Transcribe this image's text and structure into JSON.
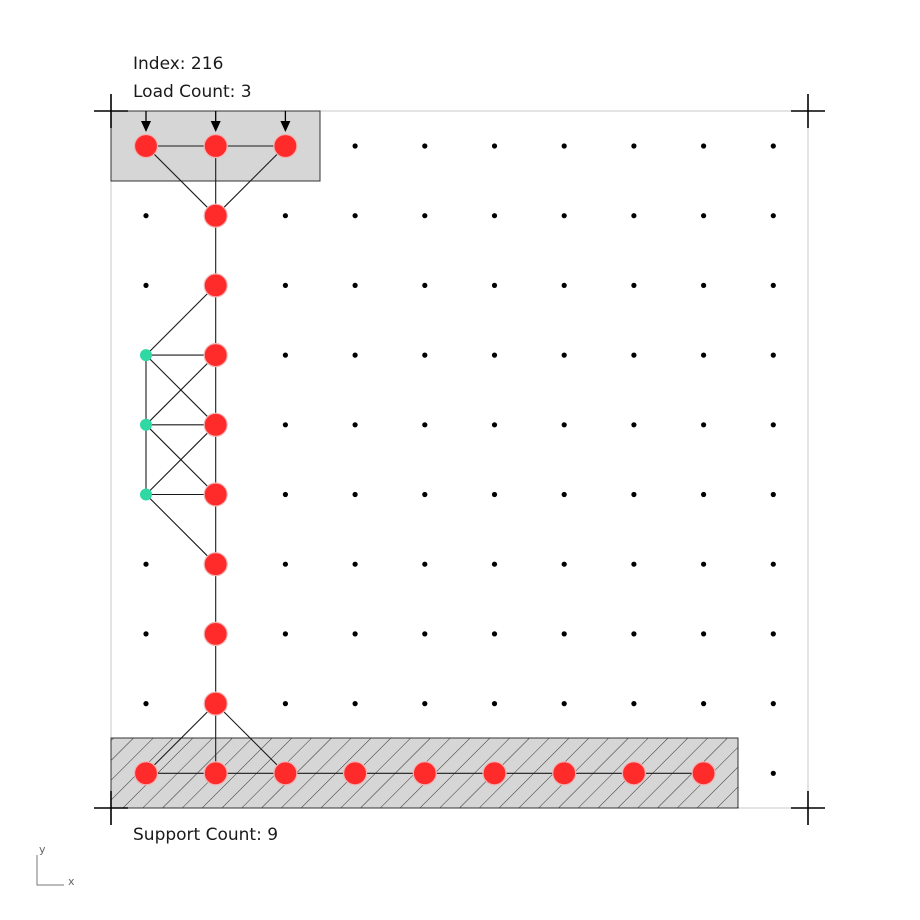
{
  "header": {
    "index_label": "Index: 216",
    "load_count_label": "Load Count: 3"
  },
  "footer": {
    "support_count_label": "Support Count: 9"
  },
  "axis_indicator": {
    "x_label": "x",
    "y_label": "y"
  },
  "colors": {
    "background": "#ffffff",
    "frame": "#c8c8c8",
    "region_fill": "#d6d6d6",
    "hatch": "#333333",
    "active_node": "#ff2a2a",
    "active_node_stroke": "#f2b2b2",
    "auxiliary_node": "#30d9a4",
    "grid_dot": "#000000",
    "member": "#1a1a1a"
  },
  "grid": {
    "cols": 10,
    "rows": 10
  },
  "load_nodes": [
    [
      0,
      0
    ],
    [
      1,
      0
    ],
    [
      2,
      0
    ]
  ],
  "support_nodes": [
    [
      0,
      9
    ],
    [
      1,
      9
    ],
    [
      2,
      9
    ],
    [
      3,
      9
    ],
    [
      4,
      9
    ],
    [
      5,
      9
    ],
    [
      6,
      9
    ],
    [
      7,
      9
    ],
    [
      8,
      9
    ]
  ],
  "active_nodes": [
    [
      0,
      0
    ],
    [
      1,
      0
    ],
    [
      2,
      0
    ],
    [
      1,
      1
    ],
    [
      1,
      2
    ],
    [
      1,
      3
    ],
    [
      1,
      4
    ],
    [
      1,
      5
    ],
    [
      1,
      6
    ],
    [
      1,
      7
    ],
    [
      1,
      8
    ],
    [
      0,
      9
    ],
    [
      1,
      9
    ],
    [
      2,
      9
    ],
    [
      3,
      9
    ],
    [
      4,
      9
    ],
    [
      5,
      9
    ],
    [
      6,
      9
    ],
    [
      7,
      9
    ],
    [
      8,
      9
    ]
  ],
  "auxiliary_nodes": [
    [
      0,
      3
    ],
    [
      0,
      4
    ],
    [
      0,
      5
    ]
  ],
  "members": [
    [
      [
        0,
        0
      ],
      [
        1,
        0
      ]
    ],
    [
      [
        1,
        0
      ],
      [
        2,
        0
      ]
    ],
    [
      [
        0,
        0
      ],
      [
        1,
        1
      ]
    ],
    [
      [
        1,
        0
      ],
      [
        1,
        1
      ]
    ],
    [
      [
        2,
        0
      ],
      [
        1,
        1
      ]
    ],
    [
      [
        1,
        1
      ],
      [
        1,
        2
      ]
    ],
    [
      [
        1,
        2
      ],
      [
        0,
        3
      ]
    ],
    [
      [
        1,
        2
      ],
      [
        1,
        3
      ]
    ],
    [
      [
        0,
        3
      ],
      [
        1,
        3
      ]
    ],
    [
      [
        0,
        3
      ],
      [
        0,
        4
      ]
    ],
    [
      [
        0,
        3
      ],
      [
        1,
        4
      ]
    ],
    [
      [
        1,
        3
      ],
      [
        0,
        4
      ]
    ],
    [
      [
        1,
        3
      ],
      [
        1,
        4
      ]
    ],
    [
      [
        0,
        4
      ],
      [
        1,
        4
      ]
    ],
    [
      [
        0,
        4
      ],
      [
        0,
        5
      ]
    ],
    [
      [
        0,
        4
      ],
      [
        1,
        5
      ]
    ],
    [
      [
        1,
        4
      ],
      [
        0,
        5
      ]
    ],
    [
      [
        1,
        4
      ],
      [
        1,
        5
      ]
    ],
    [
      [
        0,
        5
      ],
      [
        1,
        5
      ]
    ],
    [
      [
        0,
        5
      ],
      [
        1,
        6
      ]
    ],
    [
      [
        1,
        5
      ],
      [
        1,
        6
      ]
    ],
    [
      [
        1,
        6
      ],
      [
        1,
        7
      ]
    ],
    [
      [
        1,
        7
      ],
      [
        1,
        8
      ]
    ],
    [
      [
        1,
        8
      ],
      [
        0,
        9
      ]
    ],
    [
      [
        1,
        8
      ],
      [
        1,
        9
      ]
    ],
    [
      [
        1,
        8
      ],
      [
        2,
        9
      ]
    ],
    [
      [
        0,
        9
      ],
      [
        1,
        9
      ]
    ],
    [
      [
        1,
        9
      ],
      [
        2,
        9
      ]
    ],
    [
      [
        2,
        9
      ],
      [
        3,
        9
      ]
    ],
    [
      [
        3,
        9
      ],
      [
        4,
        9
      ]
    ],
    [
      [
        4,
        9
      ],
      [
        5,
        9
      ]
    ],
    [
      [
        5,
        9
      ],
      [
        6,
        9
      ]
    ],
    [
      [
        6,
        9
      ],
      [
        7,
        9
      ]
    ],
    [
      [
        7,
        9
      ],
      [
        8,
        9
      ]
    ]
  ]
}
